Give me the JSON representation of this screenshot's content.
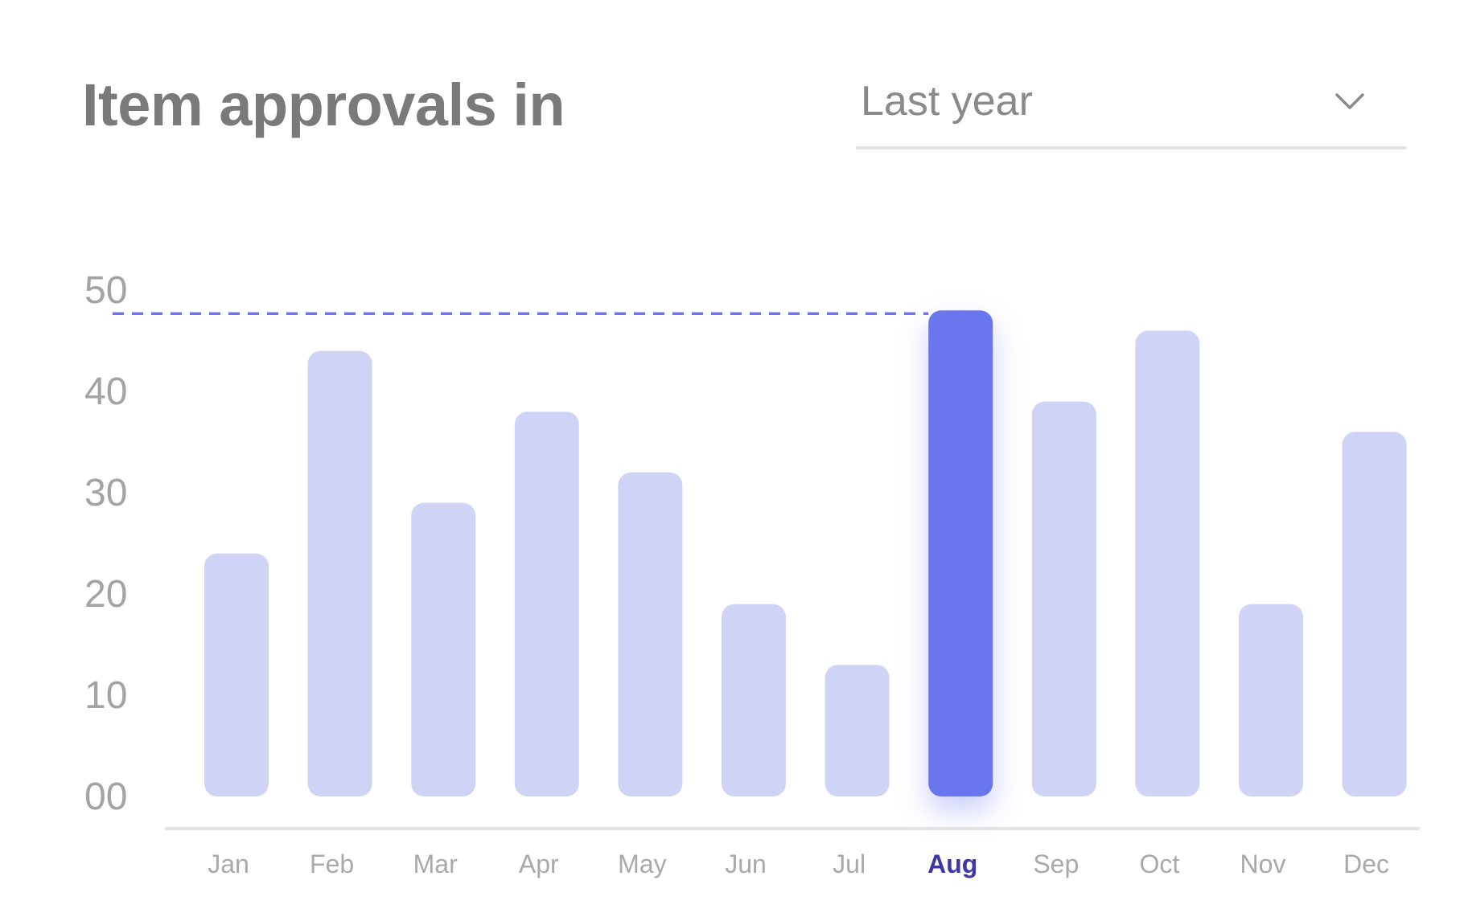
{
  "header": {
    "title": "Item approvals in",
    "period_select": {
      "value": "Last year"
    }
  },
  "colors": {
    "bar": "#cfd4f7",
    "bar_active": "#6b76ee",
    "reference_line": "#6b76ee",
    "active_label": "#3f36a8",
    "axis": "#e3e3e3"
  },
  "icons": {
    "dropdown": "chevron-down-icon"
  },
  "chart_data": {
    "type": "bar",
    "categories": [
      "Jan",
      "Feb",
      "Mar",
      "Apr",
      "May",
      "Jun",
      "Jul",
      "Aug",
      "Sep",
      "Oct",
      "Nov",
      "Dec"
    ],
    "values": [
      24,
      44,
      29,
      38,
      32,
      19,
      13,
      48,
      39,
      46,
      19,
      36
    ],
    "highlighted": "Aug",
    "reference_value": 48,
    "y_ticks": [
      "00",
      "10",
      "20",
      "30",
      "40",
      "50"
    ],
    "ylim": [
      0,
      50
    ],
    "grid": false,
    "legend": "none"
  }
}
